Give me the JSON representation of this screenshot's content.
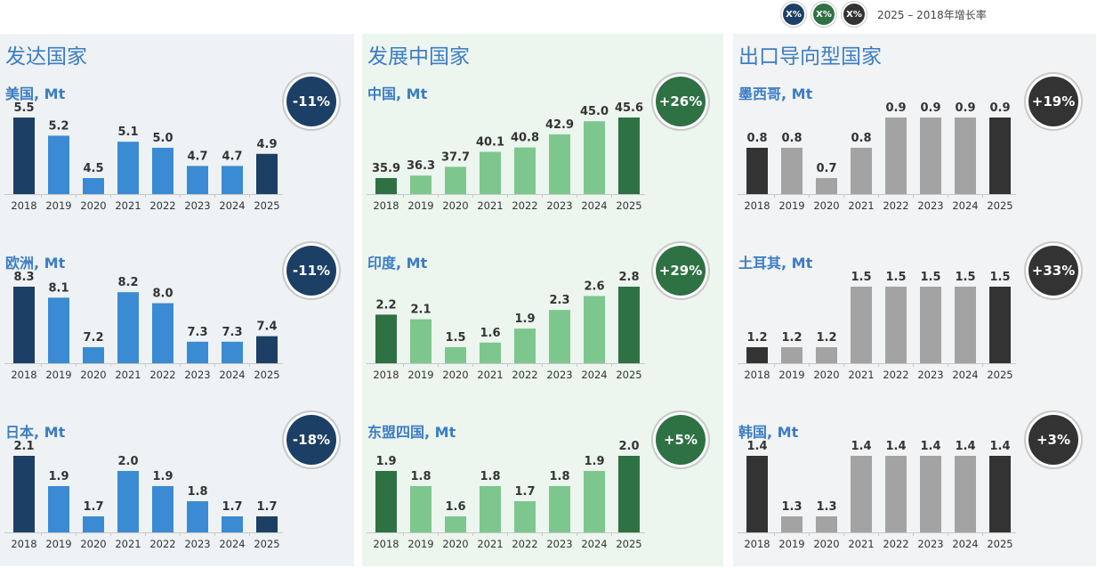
{
  "legend": {
    "badges": [
      {
        "label": "X%",
        "color": "#1c3f66"
      },
      {
        "label": "X%",
        "color": "#2e7143"
      },
      {
        "label": "X%",
        "color": "#333333"
      }
    ],
    "text": "2025 – 2018年增长率"
  },
  "panels": [
    {
      "title": "发达国家",
      "bg": "#eef2f4",
      "title_color": "#3b7dc4"
    },
    {
      "title": "发展中国家",
      "bg": "#edf5ef",
      "title_color": "#3b7dc4"
    },
    {
      "title": "出口导向型国家",
      "bg": "#f1f3f4",
      "title_color": "#3b7dc4"
    }
  ],
  "colors": {
    "developed": {
      "end": "#1c3f66",
      "mid": "#3a8bd4",
      "title": "#3b7dc4",
      "badge": "#1c3f66"
    },
    "developing": {
      "end": "#2e7143",
      "mid": "#7dc78f",
      "title": "#3b7dc4",
      "badge": "#2e7143"
    },
    "export": {
      "end": "#333333",
      "mid": "#a3a3a3",
      "title": "#3b7dc4",
      "badge": "#333333"
    }
  },
  "chart_data": [
    {
      "type": "bar",
      "panel": 0,
      "title": "美国, Mt",
      "growth": "-11%",
      "categories": [
        "2018",
        "2019",
        "2020",
        "2021",
        "2022",
        "2023",
        "2024",
        "2025"
      ],
      "values": [
        5.5,
        5.2,
        4.5,
        5.1,
        5.0,
        4.7,
        4.7,
        4.9
      ],
      "labels": [
        "5.5",
        "5.2",
        "4.5",
        "5.1",
        "5.0",
        "4.7",
        "4.7",
        "4.9"
      ]
    },
    {
      "type": "bar",
      "panel": 0,
      "title": "欧洲, Mt",
      "growth": "-11%",
      "categories": [
        "2018",
        "2019",
        "2020",
        "2021",
        "2022",
        "2023",
        "2024",
        "2025"
      ],
      "values": [
        8.3,
        8.1,
        7.2,
        8.2,
        8.0,
        7.3,
        7.3,
        7.4
      ],
      "labels": [
        "8.3",
        "8.1",
        "7.2",
        "8.2",
        "8.0",
        "7.3",
        "7.3",
        "7.4"
      ]
    },
    {
      "type": "bar",
      "panel": 0,
      "title": "日本, Mt",
      "growth": "-18%",
      "categories": [
        "2018",
        "2019",
        "2020",
        "2021",
        "2022",
        "2023",
        "2024",
        "2025"
      ],
      "values": [
        2.1,
        1.9,
        1.7,
        2.0,
        1.9,
        1.8,
        1.7,
        1.7
      ],
      "labels": [
        "2.1",
        "1.9",
        "1.7",
        "2.0",
        "1.9",
        "1.8",
        "1.7",
        "1.7"
      ]
    },
    {
      "type": "bar",
      "panel": 1,
      "title": "中国, Mt",
      "growth": "+26%",
      "categories": [
        "2018",
        "2019",
        "2020",
        "2021",
        "2022",
        "2023",
        "2024",
        "2025"
      ],
      "values": [
        35.9,
        36.3,
        37.7,
        40.1,
        40.8,
        42.9,
        45.0,
        45.6
      ],
      "labels": [
        "35.9",
        "36.3",
        "37.7",
        "40.1",
        "40.8",
        "42.9",
        "45.0",
        "45.6"
      ]
    },
    {
      "type": "bar",
      "panel": 1,
      "title": "印度, Mt",
      "growth": "+29%",
      "categories": [
        "2018",
        "2019",
        "2020",
        "2021",
        "2022",
        "2023",
        "2024",
        "2025"
      ],
      "values": [
        2.2,
        2.1,
        1.5,
        1.6,
        1.9,
        2.3,
        2.6,
        2.8
      ],
      "labels": [
        "2.2",
        "2.1",
        "1.5",
        "1.6",
        "1.9",
        "2.3",
        "2.6",
        "2.8"
      ]
    },
    {
      "type": "bar",
      "panel": 1,
      "title": "东盟四国, Mt",
      "growth": "+5%",
      "categories": [
        "2018",
        "2019",
        "2020",
        "2021",
        "2022",
        "2023",
        "2024",
        "2025"
      ],
      "values": [
        1.9,
        1.8,
        1.6,
        1.8,
        1.7,
        1.8,
        1.9,
        2.0
      ],
      "labels": [
        "1.9",
        "1.8",
        "1.6",
        "1.8",
        "1.7",
        "1.8",
        "1.9",
        "2.0"
      ]
    },
    {
      "type": "bar",
      "panel": 2,
      "title": "墨西哥, Mt",
      "growth": "+19%",
      "categories": [
        "2018",
        "2019",
        "2020",
        "2021",
        "2022",
        "2023",
        "2024",
        "2025"
      ],
      "values": [
        0.8,
        0.8,
        0.7,
        0.8,
        0.9,
        0.9,
        0.9,
        0.9
      ],
      "labels": [
        "0.8",
        "0.8",
        "0.7",
        "0.8",
        "0.9",
        "0.9",
        "0.9",
        "0.9"
      ]
    },
    {
      "type": "bar",
      "panel": 2,
      "title": "土耳其, Mt",
      "growth": "+33%",
      "categories": [
        "2018",
        "2019",
        "2020",
        "2021",
        "2022",
        "2023",
        "2024",
        "2025"
      ],
      "values": [
        1.2,
        1.2,
        1.2,
        1.5,
        1.5,
        1.5,
        1.5,
        1.5
      ],
      "labels": [
        "1.2",
        "1.2",
        "1.2",
        "1.5",
        "1.5",
        "1.5",
        "1.5",
        "1.5"
      ]
    },
    {
      "type": "bar",
      "panel": 2,
      "title": "韩国, Mt",
      "growth": "+3%",
      "categories": [
        "2018",
        "2019",
        "2020",
        "2021",
        "2022",
        "2023",
        "2024",
        "2025"
      ],
      "values": [
        1.4,
        1.3,
        1.3,
        1.4,
        1.4,
        1.4,
        1.4,
        1.4
      ],
      "labels": [
        "1.4",
        "1.3",
        "1.3",
        "1.4",
        "1.4",
        "1.4",
        "1.4",
        "1.4"
      ]
    }
  ]
}
